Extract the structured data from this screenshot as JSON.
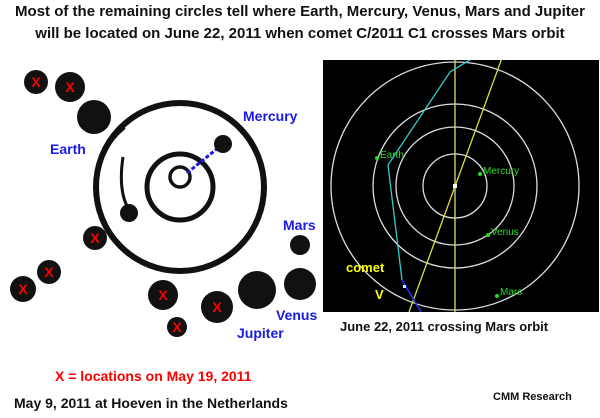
{
  "title": {
    "line1": "Most of the remaining circles tell where Earth, Mercury, Venus, Mars and Jupiter",
    "line2": "will be located on June 22, 2011 when comet C/2011 C1 crosses Mars orbit"
  },
  "crop_circle": {
    "labels": {
      "mercury": "Mercury",
      "earth": "Earth",
      "mars": "Mars",
      "venus": "Venus",
      "jupiter": "Jupiter"
    },
    "x_mark": "X",
    "legend": "X = locations on May 19, 2011",
    "caption": "May 9, 2011 at Hoeven in the Netherlands"
  },
  "orbit_chart": {
    "planets": {
      "earth": "Earth",
      "mercury": "Mercury",
      "venus": "Venus",
      "mars": "Mars"
    },
    "comet_label": "comet",
    "comet_marker": "V",
    "caption": "June 22, 2011 crossing Mars orbit"
  },
  "credit": "CMM Research",
  "colors": {
    "label_blue": "#1a1ae6",
    "x_red": "#ff0000",
    "planet_green": "#22dd22",
    "comet_yellow": "#ffff00",
    "orbit_cyan": "#33cccc"
  }
}
